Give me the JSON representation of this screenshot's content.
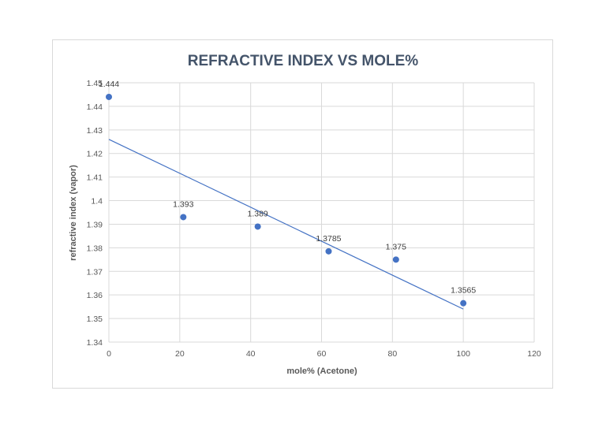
{
  "chart_data": {
    "type": "scatter",
    "title": "REFRACTIVE INDEX VS MOLE%",
    "xlabel": "mole% (Acetone)",
    "ylabel": "refractive index (vapor)",
    "xlim": [
      0,
      120
    ],
    "ylim": [
      1.34,
      1.45
    ],
    "x_ticks": [
      "0",
      "20",
      "40",
      "60",
      "80",
      "100",
      "120"
    ],
    "y_ticks": [
      "1.34",
      "1.35",
      "1.36",
      "1.37",
      "1.38",
      "1.39",
      "1.4",
      "1.41",
      "1.42",
      "1.43",
      "1.44",
      "1.45"
    ],
    "grid": true,
    "points": [
      {
        "x": 0,
        "y": 1.444,
        "label": "1.444"
      },
      {
        "x": 21,
        "y": 1.393,
        "label": "1.393"
      },
      {
        "x": 42,
        "y": 1.389,
        "label": "1.389"
      },
      {
        "x": 62,
        "y": 1.3785,
        "label": "1.3785"
      },
      {
        "x": 81,
        "y": 1.375,
        "label": "1.375"
      },
      {
        "x": 100,
        "y": 1.3565,
        "label": "1.3565"
      }
    ],
    "trendline": {
      "type": "linear",
      "x": [
        0,
        100
      ],
      "y": [
        1.426,
        1.354
      ]
    },
    "colors": {
      "marker": "#4472c4",
      "trendline": "#4472c4"
    }
  }
}
